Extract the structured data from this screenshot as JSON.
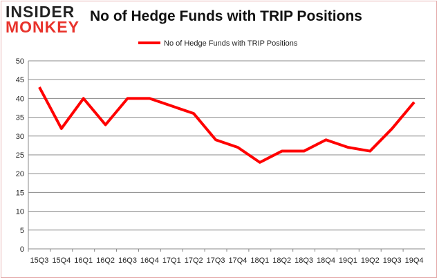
{
  "logo": {
    "line1": "INSIDER",
    "line2": "MONKEY"
  },
  "chart_data": {
    "type": "line",
    "title": "No of Hedge Funds with TRIP Positions",
    "categories": [
      "15Q3",
      "15Q4",
      "16Q1",
      "16Q2",
      "16Q3",
      "16Q4",
      "17Q1",
      "17Q2",
      "17Q3",
      "17Q4",
      "18Q1",
      "18Q2",
      "18Q3",
      "18Q4",
      "19Q1",
      "19Q2",
      "19Q3",
      "19Q4"
    ],
    "series": [
      {
        "name": "No of Hedge Funds with TRIP Positions",
        "color": "#ff0000",
        "values": [
          43,
          32,
          40,
          33,
          40,
          40,
          38,
          36,
          29,
          27,
          23,
          26,
          26,
          29,
          27,
          26,
          32,
          39
        ]
      }
    ],
    "ylim": [
      0,
      50
    ],
    "yticks": [
      0,
      5,
      10,
      15,
      20,
      25,
      30,
      35,
      40,
      45,
      50
    ],
    "grid": true,
    "legend": "top"
  }
}
